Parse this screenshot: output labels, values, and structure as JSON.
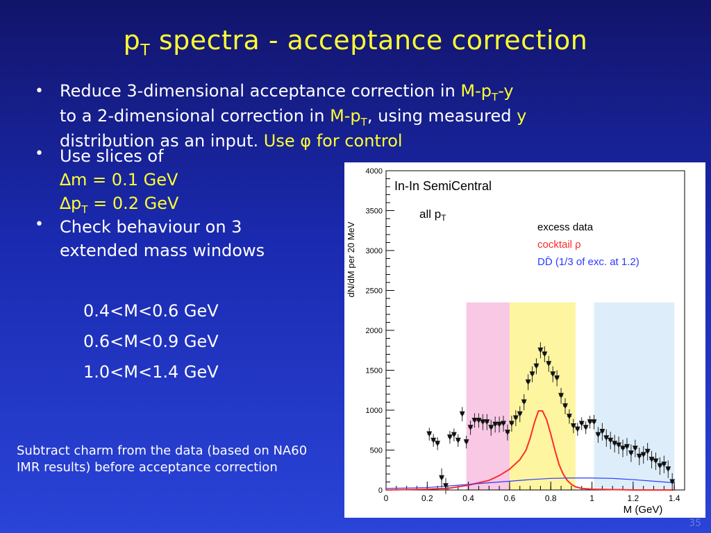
{
  "title": {
    "main": "p",
    "sub": "T",
    "rest": " spectra  - acceptance correction"
  },
  "bullets": {
    "b1": {
      "l1a": "Reduce 3-dimensional acceptance correction in ",
      "l1b": "M-p",
      "l1c": "T",
      "l1d": "-y",
      "l2a": "to a 2-dimensional correction in ",
      "l2b": "M-p",
      "l2c": "T",
      "l2d": ", using measured ",
      "l2e": "y",
      "l3a": "distribution as an input. ",
      "l3b": "Use ",
      "l3c": "φ",
      "l3d": " for control"
    },
    "b2": {
      "l1": "Use slices of",
      "dm": "∆m = 0.1 GeV",
      "dpt_a": "∆p",
      "dpt_b": "T",
      "dpt_c": " = 0.2 GeV"
    },
    "b3": {
      "l1": "Check behaviour on 3",
      "l2": "extended mass windows"
    },
    "bullet_char": "•"
  },
  "windows": [
    "0.4<M<0.6 GeV",
    "0.6<M<0.9 GeV",
    "1.0<M<1.4 GeV"
  ],
  "note": {
    "l1": "Subtract charm from the data (based on NA60",
    "l2": "IMR results) before acceptance correction"
  },
  "page_number": "35",
  "chart_data": {
    "type": "scatter",
    "title": "In-In SemiCentral",
    "subtitle_a": "all p",
    "subtitle_b": "T",
    "xlabel": "M (GeV)",
    "ylabel": "dN/dM per 20 MeV",
    "xlim": [
      0,
      1.45
    ],
    "ylim": [
      0,
      4000
    ],
    "xticks": [
      0,
      0.2,
      0.4,
      0.6,
      0.8,
      1,
      1.2,
      1.4
    ],
    "yticks": [
      0,
      500,
      1000,
      1500,
      2000,
      2500,
      3000,
      3500,
      4000
    ],
    "bands": [
      {
        "x0": 0.39,
        "x1": 0.6,
        "ymax": 2350,
        "color": "#f8c8e4"
      },
      {
        "x0": 0.6,
        "x1": 0.92,
        "ymax": 2350,
        "color": "#fdf5a0"
      },
      {
        "x0": 1.01,
        "x1": 1.4,
        "ymax": 2350,
        "color": "#ddeefa"
      }
    ],
    "legend": [
      {
        "label": "excess data",
        "color": "#000000"
      },
      {
        "label": "cocktail ρ",
        "color": "#ff2a2a"
      },
      {
        "label": "DD̄ (1/3 of exc. at 1.2)",
        "color": "#2a3aff"
      }
    ],
    "legend_placement": "top-right",
    "series": [
      {
        "name": "excess data",
        "color": "#000000",
        "x": [
          0.21,
          0.23,
          0.25,
          0.27,
          0.29,
          0.31,
          0.33,
          0.35,
          0.37,
          0.39,
          0.41,
          0.43,
          0.45,
          0.47,
          0.49,
          0.51,
          0.53,
          0.55,
          0.57,
          0.59,
          0.61,
          0.63,
          0.65,
          0.67,
          0.69,
          0.71,
          0.73,
          0.75,
          0.77,
          0.79,
          0.81,
          0.83,
          0.85,
          0.87,
          0.89,
          0.91,
          0.93,
          0.95,
          0.97,
          0.99,
          1.01,
          1.03,
          1.05,
          1.07,
          1.09,
          1.11,
          1.13,
          1.15,
          1.17,
          1.19,
          1.21,
          1.23,
          1.25,
          1.27,
          1.29,
          1.31,
          1.33,
          1.35,
          1.37,
          1.39
        ],
        "y": [
          700,
          620,
          580,
          150,
          50,
          660,
          690,
          620,
          950,
          600,
          780,
          870,
          870,
          850,
          850,
          780,
          820,
          820,
          830,
          720,
          830,
          900,
          950,
          1100,
          1350,
          1450,
          1550,
          1750,
          1700,
          1580,
          1450,
          1400,
          1180,
          1050,
          920,
          800,
          760,
          830,
          780,
          850,
          850,
          690,
          730,
          650,
          620,
          580,
          560,
          520,
          540,
          460,
          520,
          420,
          440,
          480,
          380,
          360,
          300,
          320,
          260,
          100
        ],
        "err": [
          80,
          80,
          80,
          120,
          100,
          80,
          80,
          80,
          90,
          80,
          90,
          90,
          90,
          100,
          100,
          100,
          100,
          100,
          100,
          100,
          100,
          100,
          100,
          100,
          100,
          100,
          100,
          100,
          100,
          100,
          100,
          100,
          100,
          100,
          90,
          90,
          80,
          80,
          80,
          80,
          90,
          100,
          110,
          110,
          110,
          110,
          110,
          110,
          110,
          110,
          110,
          110,
          110,
          110,
          110,
          110,
          110,
          110,
          110,
          110
        ]
      },
      {
        "name": "cocktail ρ",
        "color": "#ff2a2a",
        "x": [
          0,
          0.2,
          0.3,
          0.35,
          0.4,
          0.45,
          0.5,
          0.55,
          0.6,
          0.65,
          0.68,
          0.7,
          0.72,
          0.74,
          0.76,
          0.78,
          0.8,
          0.82,
          0.84,
          0.86,
          0.88,
          0.9,
          0.92,
          0.95,
          1.0,
          1.2,
          1.4
        ],
        "y": [
          0,
          10,
          20,
          40,
          60,
          90,
          120,
          180,
          260,
          380,
          500,
          650,
          840,
          990,
          990,
          880,
          700,
          500,
          320,
          200,
          120,
          70,
          40,
          20,
          10,
          0,
          0
        ]
      },
      {
        "name": "DD̄ (1/3 of exc. at 1.2)",
        "color": "#2a3aff",
        "x": [
          0,
          0.2,
          0.3,
          0.4,
          0.5,
          0.6,
          0.7,
          0.8,
          0.9,
          1.0,
          1.1,
          1.2,
          1.3,
          1.4
        ],
        "y": [
          20,
          30,
          50,
          70,
          90,
          110,
          130,
          145,
          150,
          150,
          145,
          130,
          110,
          90
        ]
      }
    ]
  }
}
